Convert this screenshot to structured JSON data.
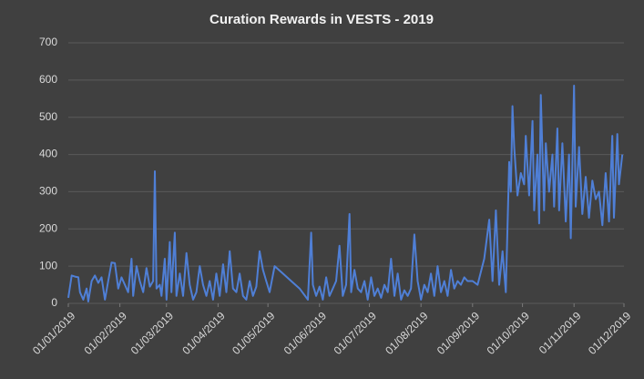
{
  "chart_data": {
    "type": "line",
    "title": "Curation Rewards in VESTS - 2019",
    "x": [
      "2019-01-01",
      "2019-01-03",
      "2019-01-05",
      "2019-01-07",
      "2019-01-08",
      "2019-01-10",
      "2019-01-12",
      "2019-01-13",
      "2019-01-15",
      "2019-01-17",
      "2019-01-19",
      "2019-01-21",
      "2019-01-23",
      "2019-01-25",
      "2019-01-27",
      "2019-01-29",
      "2019-01-31",
      "2019-02-02",
      "2019-02-04",
      "2019-02-06",
      "2019-02-08",
      "2019-02-09",
      "2019-02-11",
      "2019-02-13",
      "2019-02-15",
      "2019-02-17",
      "2019-02-19",
      "2019-02-21",
      "2019-02-22",
      "2019-02-23",
      "2019-02-25",
      "2019-02-26",
      "2019-02-28",
      "2019-03-01",
      "2019-03-03",
      "2019-03-04",
      "2019-03-06",
      "2019-03-07",
      "2019-03-09",
      "2019-03-11",
      "2019-03-13",
      "2019-03-15",
      "2019-03-17",
      "2019-03-19",
      "2019-03-21",
      "2019-03-23",
      "2019-03-25",
      "2019-03-27",
      "2019-03-29",
      "2019-03-31",
      "2019-04-02",
      "2019-04-04",
      "2019-04-06",
      "2019-04-08",
      "2019-04-10",
      "2019-04-12",
      "2019-04-14",
      "2019-04-16",
      "2019-04-18",
      "2019-04-20",
      "2019-04-22",
      "2019-04-24",
      "2019-04-26",
      "2019-04-28",
      "2019-04-30",
      "2019-05-02",
      "2019-05-05",
      "2019-05-10",
      "2019-05-15",
      "2019-05-20",
      "2019-05-25",
      "2019-05-27",
      "2019-05-28",
      "2019-05-30",
      "2019-06-01",
      "2019-06-03",
      "2019-06-05",
      "2019-06-07",
      "2019-06-09",
      "2019-06-11",
      "2019-06-13",
      "2019-06-15",
      "2019-06-17",
      "2019-06-19",
      "2019-06-20",
      "2019-06-22",
      "2019-06-24",
      "2019-06-26",
      "2019-06-28",
      "2019-06-30",
      "2019-07-02",
      "2019-07-04",
      "2019-07-06",
      "2019-07-08",
      "2019-07-10",
      "2019-07-12",
      "2019-07-14",
      "2019-07-16",
      "2019-07-18",
      "2019-07-20",
      "2019-07-22",
      "2019-07-24",
      "2019-07-26",
      "2019-07-28",
      "2019-07-30",
      "2019-08-01",
      "2019-08-03",
      "2019-08-05",
      "2019-08-07",
      "2019-08-09",
      "2019-08-11",
      "2019-08-13",
      "2019-08-15",
      "2019-08-17",
      "2019-08-19",
      "2019-08-21",
      "2019-08-23",
      "2019-08-25",
      "2019-08-27",
      "2019-08-29",
      "2019-09-01",
      "2019-09-04",
      "2019-09-08",
      "2019-09-11",
      "2019-09-13",
      "2019-09-15",
      "2019-09-17",
      "2019-09-19",
      "2019-09-21",
      "2019-09-23",
      "2019-09-24",
      "2019-09-25",
      "2019-09-26",
      "2019-09-28",
      "2019-09-30",
      "2019-10-02",
      "2019-10-03",
      "2019-10-05",
      "2019-10-07",
      "2019-10-08",
      "2019-10-10",
      "2019-10-11",
      "2019-10-12",
      "2019-10-14",
      "2019-10-15",
      "2019-10-17",
      "2019-10-19",
      "2019-10-20",
      "2019-10-22",
      "2019-10-23",
      "2019-10-25",
      "2019-10-27",
      "2019-10-29",
      "2019-10-30",
      "2019-11-01",
      "2019-11-02",
      "2019-11-04",
      "2019-11-06",
      "2019-11-08",
      "2019-11-10",
      "2019-11-12",
      "2019-11-14",
      "2019-11-16",
      "2019-11-18",
      "2019-11-20",
      "2019-11-22",
      "2019-11-24",
      "2019-11-25",
      "2019-11-27",
      "2019-11-28",
      "2019-11-30"
    ],
    "series": [
      {
        "color": "#4f7fd6",
        "values": [
          15,
          75,
          72,
          70,
          30,
          10,
          40,
          5,
          60,
          75,
          55,
          70,
          10,
          60,
          110,
          108,
          40,
          70,
          50,
          30,
          120,
          20,
          100,
          60,
          30,
          95,
          45,
          60,
          355,
          40,
          50,
          20,
          120,
          10,
          165,
          30,
          190,
          20,
          80,
          20,
          135,
          50,
          10,
          30,
          100,
          50,
          20,
          60,
          10,
          80,
          20,
          105,
          30,
          140,
          40,
          30,
          80,
          20,
          10,
          60,
          20,
          45,
          140,
          90,
          60,
          30,
          100,
          80,
          60,
          40,
          10,
          190,
          50,
          20,
          45,
          10,
          70,
          20,
          40,
          60,
          155,
          20,
          50,
          240,
          30,
          90,
          40,
          30,
          60,
          10,
          70,
          20,
          40,
          15,
          50,
          30,
          120,
          20,
          80,
          10,
          35,
          20,
          40,
          185,
          60,
          10,
          50,
          30,
          80,
          20,
          100,
          30,
          60,
          20,
          90,
          40,
          60,
          50,
          70,
          60,
          60,
          50,
          120,
          225,
          60,
          250,
          50,
          140,
          30,
          380,
          300,
          530,
          420,
          290,
          350,
          320,
          450,
          290,
          490,
          250,
          400,
          215,
          560,
          250,
          430,
          300,
          400,
          260,
          470,
          250,
          430,
          220,
          400,
          175,
          585,
          260,
          420,
          240,
          340,
          230,
          330,
          280,
          300,
          210,
          350,
          220,
          450,
          230,
          455,
          320,
          400
        ]
      }
    ],
    "xlim": [
      "2019-01-01",
      "2019-12-01"
    ],
    "xticks": [
      {
        "value": "2019-01-01",
        "label": "01/01/2019"
      },
      {
        "value": "2019-02-01",
        "label": "01/02/2019"
      },
      {
        "value": "2019-03-01",
        "label": "01/03/2019"
      },
      {
        "value": "2019-04-01",
        "label": "01/04/2019"
      },
      {
        "value": "2019-05-01",
        "label": "01/05/2019"
      },
      {
        "value": "2019-06-01",
        "label": "01/06/2019"
      },
      {
        "value": "2019-07-01",
        "label": "01/07/2019"
      },
      {
        "value": "2019-08-01",
        "label": "01/08/2019"
      },
      {
        "value": "2019-09-01",
        "label": "01/09/2019"
      },
      {
        "value": "2019-10-01",
        "label": "01/10/2019"
      },
      {
        "value": "2019-11-01",
        "label": "01/11/2019"
      },
      {
        "value": "2019-12-01",
        "label": "01/12/2019"
      }
    ],
    "ylim": [
      0,
      700
    ],
    "yticks": [
      0,
      100,
      200,
      300,
      400,
      500,
      600,
      700
    ],
    "grid": true
  }
}
